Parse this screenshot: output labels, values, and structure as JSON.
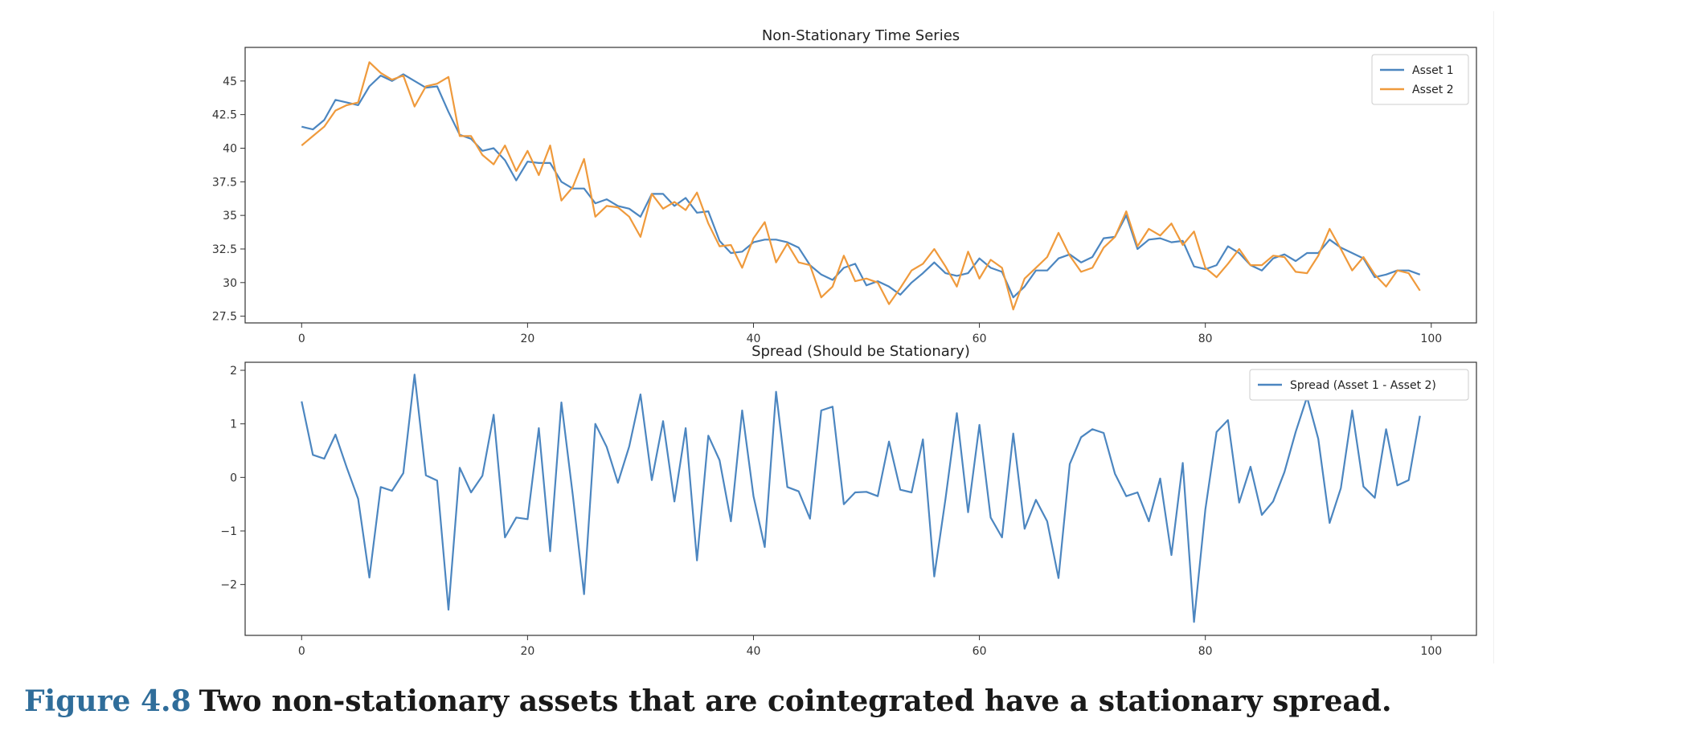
{
  "caption": {
    "label": "Figure 4.8",
    "text": "Two non-stationary assets that are cointegrated have a stationary spread."
  },
  "colors": {
    "series_blue": "#4c86c0",
    "series_orange": "#ef9a3c",
    "axis": "#333333"
  },
  "chart_data": [
    {
      "type": "line",
      "title": "Non-Stationary Time Series",
      "xlabel": "",
      "ylabel": "",
      "xlim": [
        -5,
        104
      ],
      "ylim": [
        27.0,
        47.5
      ],
      "xticks": [
        0,
        20,
        40,
        60,
        80,
        100
      ],
      "yticks": [
        27.5,
        30.0,
        32.5,
        35.0,
        37.5,
        40.0,
        42.5,
        45.0
      ],
      "grid": false,
      "legend": "top-right",
      "series": [
        {
          "name": "Asset 1",
          "color": "#4c86c0",
          "x": [
            0,
            1,
            2,
            3,
            4,
            5,
            6,
            7,
            8,
            9,
            10,
            11,
            12,
            13,
            14,
            15,
            16,
            17,
            18,
            19,
            20,
            21,
            22,
            23,
            24,
            25,
            26,
            27,
            28,
            29,
            30,
            31,
            32,
            33,
            34,
            35,
            36,
            37,
            38,
            39,
            40,
            41,
            42,
            43,
            44,
            45,
            46,
            47,
            48,
            49,
            50,
            51,
            52,
            53,
            54,
            55,
            56,
            57,
            58,
            59,
            60,
            61,
            62,
            63,
            64,
            65,
            66,
            67,
            68,
            69,
            70,
            71,
            72,
            73,
            74,
            75,
            76,
            77,
            78,
            79,
            80,
            81,
            82,
            83,
            84,
            85,
            86,
            87,
            88,
            89,
            90,
            91,
            92,
            93,
            94,
            95,
            96,
            97,
            98,
            99
          ],
          "values": [
            41.6,
            41.4,
            42.1,
            43.6,
            43.4,
            43.2,
            44.6,
            45.4,
            45.0,
            45.5,
            45.0,
            44.5,
            44.6,
            42.7,
            41.0,
            40.7,
            39.8,
            40.0,
            39.1,
            37.6,
            39.0,
            38.9,
            38.9,
            37.5,
            37.0,
            37.0,
            35.9,
            36.2,
            35.7,
            35.5,
            34.9,
            36.6,
            36.6,
            35.7,
            36.3,
            35.2,
            35.3,
            33.1,
            32.2,
            32.3,
            33.0,
            33.2,
            33.2,
            33.0,
            32.6,
            31.3,
            30.6,
            30.2,
            31.1,
            31.4,
            29.8,
            30.1,
            29.7,
            29.1,
            30.0,
            30.7,
            31.5,
            30.7,
            30.5,
            30.7,
            31.8,
            31.1,
            30.8,
            28.9,
            29.7,
            30.9,
            30.9,
            31.8,
            32.1,
            31.5,
            31.9,
            33.3,
            33.4,
            35.0,
            32.5,
            33.2,
            33.3,
            33.0,
            33.1,
            31.2,
            31.0,
            31.3,
            32.7,
            32.2,
            31.3,
            30.9,
            31.8,
            32.1,
            31.6,
            32.2,
            32.2,
            33.2,
            32.6,
            32.2,
            31.8,
            30.4,
            30.6,
            30.9,
            30.9,
            30.6
          ]
        },
        {
          "name": "Asset 2",
          "color": "#ef9a3c",
          "x": [
            0,
            1,
            2,
            3,
            4,
            5,
            6,
            7,
            8,
            9,
            10,
            11,
            12,
            13,
            14,
            15,
            16,
            17,
            18,
            19,
            20,
            21,
            22,
            23,
            24,
            25,
            26,
            27,
            28,
            29,
            30,
            31,
            32,
            33,
            34,
            35,
            36,
            37,
            38,
            39,
            40,
            41,
            42,
            43,
            44,
            45,
            46,
            47,
            48,
            49,
            50,
            51,
            52,
            53,
            54,
            55,
            56,
            57,
            58,
            59,
            60,
            61,
            62,
            63,
            64,
            65,
            66,
            67,
            68,
            69,
            70,
            71,
            72,
            73,
            74,
            75,
            76,
            77,
            78,
            79,
            80,
            81,
            82,
            83,
            84,
            85,
            86,
            87,
            88,
            89,
            90,
            91,
            92,
            93,
            94,
            95,
            96,
            97,
            98,
            99
          ],
          "values": [
            40.2,
            40.9,
            41.6,
            42.8,
            43.2,
            43.4,
            46.4,
            45.6,
            45.1,
            45.4,
            43.1,
            44.6,
            44.8,
            45.3,
            40.9,
            40.9,
            39.5,
            38.8,
            40.2,
            38.3,
            39.8,
            38.0,
            40.2,
            36.1,
            37.1,
            39.2,
            34.9,
            35.7,
            35.6,
            34.9,
            33.4,
            36.6,
            35.5,
            36.0,
            35.4,
            36.7,
            34.4,
            32.7,
            32.8,
            31.1,
            33.3,
            34.5,
            31.5,
            32.9,
            31.5,
            31.3,
            28.9,
            29.7,
            32.0,
            30.1,
            30.3,
            30.0,
            28.4,
            29.6,
            30.9,
            31.4,
            32.5,
            31.2,
            29.7,
            32.3,
            30.3,
            31.7,
            31.1,
            28.0,
            30.3,
            31.1,
            31.9,
            33.7,
            32.0,
            30.8,
            31.1,
            32.6,
            33.4,
            35.3,
            32.7,
            34.0,
            33.5,
            34.4,
            32.8,
            33.8,
            31.1,
            30.4,
            31.4,
            32.5,
            31.3,
            31.3,
            32.0,
            31.9,
            30.8,
            30.7,
            32.0,
            34.0,
            32.5,
            30.9,
            31.9,
            30.6,
            29.7,
            30.9,
            30.7,
            29.4
          ]
        }
      ]
    },
    {
      "type": "line",
      "title": "Spread (Should be Stationary)",
      "xlabel": "",
      "ylabel": "",
      "xlim": [
        -5,
        104
      ],
      "ylim": [
        -2.95,
        2.15
      ],
      "xticks": [
        0,
        20,
        40,
        60,
        80,
        100
      ],
      "yticks": [
        -2,
        -1,
        0,
        1,
        2
      ],
      "grid": false,
      "legend": "top-right",
      "series": [
        {
          "name": "Spread (Asset 1 - Asset 2)",
          "color": "#4c86c0",
          "x": [
            0,
            1,
            2,
            3,
            4,
            5,
            6,
            7,
            8,
            9,
            10,
            11,
            12,
            13,
            14,
            15,
            16,
            17,
            18,
            19,
            20,
            21,
            22,
            23,
            24,
            25,
            26,
            27,
            28,
            29,
            30,
            31,
            32,
            33,
            34,
            35,
            36,
            37,
            38,
            39,
            40,
            41,
            42,
            43,
            44,
            45,
            46,
            47,
            48,
            49,
            50,
            51,
            52,
            53,
            54,
            55,
            56,
            57,
            58,
            59,
            60,
            61,
            62,
            63,
            64,
            65,
            66,
            67,
            68,
            69,
            70,
            71,
            72,
            73,
            74,
            75,
            76,
            77,
            78,
            79,
            80,
            81,
            82,
            83,
            84,
            85,
            86,
            87,
            88,
            89,
            90,
            91,
            92,
            93,
            94,
            95,
            96,
            97,
            98,
            99
          ],
          "values": [
            1.42,
            0.42,
            0.35,
            0.8,
            0.18,
            -0.4,
            -1.87,
            -0.18,
            -0.25,
            0.08,
            1.92,
            0.04,
            -0.06,
            -2.47,
            0.18,
            -0.28,
            0.03,
            1.17,
            -1.12,
            -0.75,
            -0.78,
            0.92,
            -1.38,
            1.4,
            -0.32,
            -2.18,
            1.0,
            0.57,
            -0.1,
            0.58,
            1.55,
            -0.05,
            1.05,
            -0.45,
            0.92,
            -1.55,
            0.78,
            0.32,
            -0.82,
            1.25,
            -0.35,
            -1.3,
            1.6,
            -0.18,
            -0.26,
            -0.77,
            1.25,
            1.32,
            -0.5,
            -0.28,
            -0.27,
            -0.35,
            0.67,
            -0.23,
            -0.28,
            0.71,
            -1.85,
            -0.4,
            1.2,
            -0.65,
            0.98,
            -0.75,
            -1.12,
            0.82,
            -0.96,
            -0.42,
            -0.82,
            -1.88,
            0.25,
            0.75,
            0.9,
            0.83,
            0.07,
            -0.35,
            -0.28,
            -0.82,
            -0.02,
            -1.45,
            0.27,
            -2.7,
            -0.6,
            0.85,
            1.07,
            -0.47,
            0.2,
            -0.7,
            -0.45,
            0.1,
            0.85,
            1.5,
            0.72,
            -0.85,
            -0.2,
            1.25,
            -0.17,
            -0.38,
            0.9,
            -0.15,
            -0.05,
            1.15
          ]
        }
      ]
    }
  ]
}
